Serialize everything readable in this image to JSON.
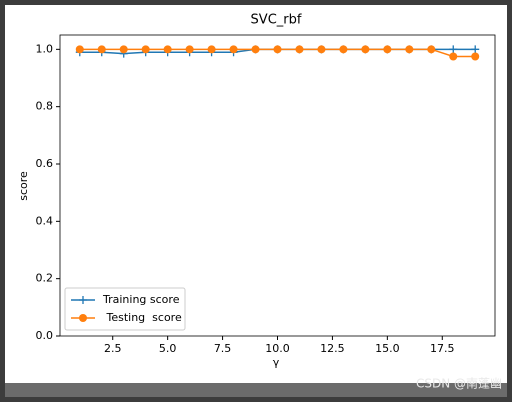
{
  "chart_data": {
    "type": "line",
    "title": "SVC_rbf",
    "xlabel": "γ",
    "ylabel": "score",
    "x": [
      1,
      2,
      3,
      4,
      5,
      6,
      7,
      8,
      9,
      10,
      11,
      12,
      13,
      14,
      15,
      16,
      17,
      18,
      19
    ],
    "series": [
      {
        "name": "Training score",
        "color": "#1f77b4",
        "marker": "plus",
        "values": [
          0.99,
          0.99,
          0.985,
          0.99,
          0.99,
          0.99,
          0.99,
          0.99,
          1.0,
          1.0,
          1.0,
          1.0,
          1.0,
          1.0,
          1.0,
          1.0,
          1.0,
          1.0,
          1.0
        ]
      },
      {
        "name": " Testing  score",
        "color": "#ff7f0e",
        "marker": "circle",
        "values": [
          1.0,
          1.0,
          1.0,
          1.0,
          1.0,
          1.0,
          1.0,
          1.0,
          1.0,
          1.0,
          1.0,
          1.0,
          1.0,
          1.0,
          1.0,
          1.0,
          1.0,
          0.975,
          0.975
        ]
      }
    ],
    "xlim": [
      0.1,
      19.9
    ],
    "xticks": [
      2.5,
      {
        "value": 5,
        "label": "5.0"
      },
      7.5,
      {
        "value": 10,
        "label": "10.0"
      },
      12.5,
      {
        "value": 15,
        "label": "15.0"
      },
      17.5
    ],
    "ylim": [
      0,
      1.05
    ],
    "yticks": [
      {
        "value": 0,
        "label": "0.0"
      },
      0.2,
      0.4,
      0.6,
      0.8,
      {
        "value": 1,
        "label": "1.0"
      }
    ],
    "legend": "lower left",
    "watermark": "CSDN @南蓬幽"
  }
}
